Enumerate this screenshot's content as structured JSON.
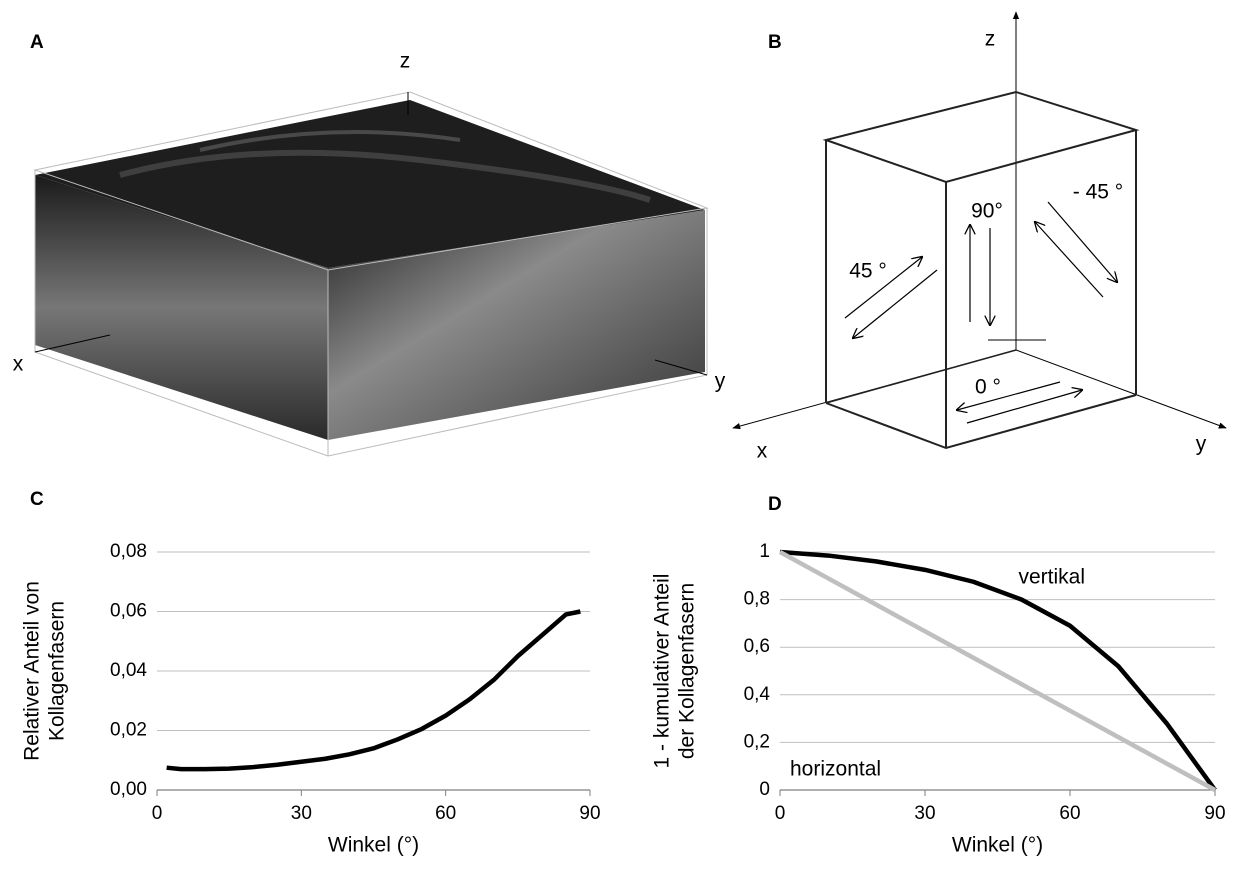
{
  "panel_a": {
    "label": "A",
    "axes": {
      "x": "x",
      "y": "y",
      "z": "z"
    }
  },
  "panel_b": {
    "label": "B",
    "axes": {
      "x": "x",
      "y": "y",
      "z": "z"
    },
    "angles": [
      "90°",
      "- 45 °",
      "45 °",
      "0 °"
    ]
  },
  "chart_data": [
    {
      "type": "line",
      "panel_label": "C",
      "xlabel": "Winkel (°)",
      "ylabel": [
        "Relativer Anteil von",
        "Kollagenfasern"
      ],
      "x": [
        2,
        5,
        10,
        15,
        20,
        25,
        30,
        35,
        40,
        45,
        50,
        55,
        60,
        65,
        70,
        75,
        80,
        85,
        88
      ],
      "series": [
        {
          "color": "#000000",
          "values": [
            0.0075,
            0.007,
            0.007,
            0.0072,
            0.0077,
            0.0085,
            0.0095,
            0.0105,
            0.012,
            0.014,
            0.017,
            0.0205,
            0.025,
            0.0305,
            0.037,
            0.045,
            0.052,
            0.059,
            0.06
          ]
        }
      ],
      "xlim": [
        0,
        90
      ],
      "xticks": [
        0,
        30,
        60,
        90
      ],
      "ylim": [
        0,
        0.08
      ],
      "yticks": [
        {
          "value": 0,
          "label": "0,00"
        },
        {
          "value": 0.02,
          "label": "0,02"
        },
        {
          "value": 0.04,
          "label": "0,04"
        },
        {
          "value": 0.06,
          "label": "0,06"
        },
        {
          "value": 0.08,
          "label": "0,08"
        }
      ],
      "grid": true
    },
    {
      "type": "line",
      "panel_label": "D",
      "xlabel": "Winkel (°)",
      "ylabel": [
        "1 - kumulativer Anteil",
        "der Kollagenfasern"
      ],
      "x": [
        0,
        10,
        20,
        30,
        40,
        50,
        60,
        70,
        80,
        85,
        90
      ],
      "series": [
        {
          "name": "vertikal",
          "color": "#000000",
          "values": [
            1,
            0.985,
            0.96,
            0.925,
            0.875,
            0.8,
            0.69,
            0.52,
            0.28,
            0.14,
            0
          ]
        },
        {
          "name": "horizontal",
          "color": "#bfbfbf",
          "values": [
            1,
            0.8889,
            0.7778,
            0.6667,
            0.5556,
            0.4444,
            0.3333,
            0.2222,
            0.1111,
            0.0556,
            0
          ]
        }
      ],
      "xlim": [
        0,
        90
      ],
      "xticks": [
        0,
        30,
        60,
        90
      ],
      "ylim": [
        0,
        1
      ],
      "yticks": [
        0,
        {
          "value": 0.2,
          "label": "0,2"
        },
        {
          "value": 0.4,
          "label": "0,4"
        },
        {
          "value": 0.6,
          "label": "0,6"
        },
        {
          "value": 0.8,
          "label": "0,8"
        },
        1
      ],
      "grid": true
    }
  ]
}
